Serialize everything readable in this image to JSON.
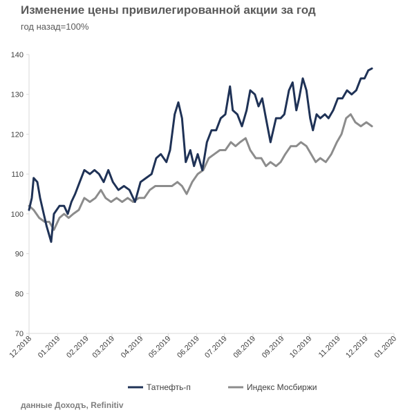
{
  "title": "Изменение цены привилегированной  акции за год",
  "subtitle": "год назад=100%",
  "source": "данные Доходъ, Refinitiv",
  "colors": {
    "series1": "#1f3256",
    "series2": "#8c8c8c",
    "axis": "#d9d9d9"
  },
  "chart_data": {
    "type": "line",
    "title": "Изменение цены привилегированной  акции за год",
    "subtitle": "год назад=100%",
    "ylim": [
      70,
      140
    ],
    "yticks": [
      70,
      80,
      90,
      100,
      110,
      120,
      130,
      140
    ],
    "xlim": [
      "2018-12-01",
      "2020-01-01"
    ],
    "xticks": [
      "12.2018",
      "01.2019",
      "02.2019",
      "03.2019",
      "04.2019",
      "05.2019",
      "06.2019",
      "07.2019",
      "08.2019",
      "09.2019",
      "10.2019",
      "11.2019",
      "12.2019",
      "01.2020"
    ],
    "grid": "none",
    "legend_position": "bottom",
    "series": [
      {
        "name": "Татнефть-п",
        "color": "#1f3256",
        "points": [
          [
            "2018-12-01",
            101
          ],
          [
            "2018-12-04",
            104
          ],
          [
            "2018-12-06",
            109
          ],
          [
            "2018-12-10",
            108
          ],
          [
            "2018-12-13",
            104
          ],
          [
            "2018-12-17",
            100
          ],
          [
            "2018-12-20",
            97
          ],
          [
            "2018-12-25",
            93
          ],
          [
            "2018-12-28",
            100
          ],
          [
            "2019-01-03",
            102
          ],
          [
            "2019-01-08",
            102
          ],
          [
            "2019-01-12",
            100
          ],
          [
            "2019-01-16",
            103
          ],
          [
            "2019-01-20",
            105
          ],
          [
            "2019-01-25",
            108
          ],
          [
            "2019-01-30",
            111
          ],
          [
            "2019-02-05",
            110
          ],
          [
            "2019-02-10",
            111
          ],
          [
            "2019-02-15",
            110
          ],
          [
            "2019-02-20",
            108
          ],
          [
            "2019-02-25",
            111
          ],
          [
            "2019-03-02",
            108
          ],
          [
            "2019-03-08",
            106
          ],
          [
            "2019-03-14",
            107
          ],
          [
            "2019-03-20",
            106
          ],
          [
            "2019-03-26",
            103
          ],
          [
            "2019-04-01",
            108
          ],
          [
            "2019-04-07",
            109
          ],
          [
            "2019-04-13",
            110
          ],
          [
            "2019-04-18",
            114
          ],
          [
            "2019-04-23",
            115
          ],
          [
            "2019-04-29",
            113
          ],
          [
            "2019-05-03",
            116
          ],
          [
            "2019-05-08",
            125
          ],
          [
            "2019-05-12",
            128
          ],
          [
            "2019-05-16",
            124
          ],
          [
            "2019-05-20",
            113
          ],
          [
            "2019-05-25",
            116
          ],
          [
            "2019-05-29",
            112
          ],
          [
            "2019-06-02",
            115
          ],
          [
            "2019-06-07",
            111
          ],
          [
            "2019-06-12",
            118
          ],
          [
            "2019-06-17",
            121
          ],
          [
            "2019-06-22",
            121
          ],
          [
            "2019-06-27",
            124
          ],
          [
            "2019-07-02",
            125
          ],
          [
            "2019-07-07",
            132
          ],
          [
            "2019-07-10",
            126
          ],
          [
            "2019-07-15",
            125
          ],
          [
            "2019-07-20",
            122
          ],
          [
            "2019-07-25",
            126
          ],
          [
            "2019-07-29",
            131
          ],
          [
            "2019-08-03",
            130
          ],
          [
            "2019-08-07",
            127
          ],
          [
            "2019-08-11",
            129
          ],
          [
            "2019-08-15",
            124
          ],
          [
            "2019-08-20",
            118
          ],
          [
            "2019-08-26",
            124
          ],
          [
            "2019-08-31",
            124
          ],
          [
            "2019-09-04",
            125
          ],
          [
            "2019-09-09",
            131
          ],
          [
            "2019-09-13",
            133
          ],
          [
            "2019-09-17",
            126
          ],
          [
            "2019-09-20",
            129
          ],
          [
            "2019-09-24",
            134
          ],
          [
            "2019-09-28",
            131
          ],
          [
            "2019-10-02",
            124
          ],
          [
            "2019-10-05",
            121
          ],
          [
            "2019-10-09",
            125
          ],
          [
            "2019-10-13",
            124
          ],
          [
            "2019-10-18",
            125
          ],
          [
            "2019-10-22",
            124
          ],
          [
            "2019-10-27",
            126
          ],
          [
            "2019-11-01",
            129
          ],
          [
            "2019-11-06",
            129
          ],
          [
            "2019-11-11",
            131
          ],
          [
            "2019-11-16",
            130
          ],
          [
            "2019-11-21",
            131
          ],
          [
            "2019-11-26",
            134
          ],
          [
            "2019-11-30",
            134
          ],
          [
            "2019-12-04",
            136
          ],
          [
            "2019-12-08",
            136.5
          ]
        ]
      },
      {
        "name": "Индекс Мосбиржи",
        "color": "#8c8c8c",
        "points": [
          [
            "2018-12-01",
            102
          ],
          [
            "2018-12-06",
            101
          ],
          [
            "2018-12-12",
            99
          ],
          [
            "2018-12-18",
            98
          ],
          [
            "2018-12-23",
            98
          ],
          [
            "2018-12-28",
            96
          ],
          [
            "2019-01-03",
            99
          ],
          [
            "2019-01-08",
            100
          ],
          [
            "2019-01-13",
            99
          ],
          [
            "2019-01-18",
            100
          ],
          [
            "2019-01-24",
            101
          ],
          [
            "2019-01-30",
            104
          ],
          [
            "2019-02-05",
            103
          ],
          [
            "2019-02-11",
            104
          ],
          [
            "2019-02-17",
            106
          ],
          [
            "2019-02-22",
            104
          ],
          [
            "2019-02-28",
            103
          ],
          [
            "2019-03-06",
            104
          ],
          [
            "2019-03-12",
            103
          ],
          [
            "2019-03-18",
            104
          ],
          [
            "2019-03-24",
            103
          ],
          [
            "2019-03-30",
            104
          ],
          [
            "2019-04-05",
            104
          ],
          [
            "2019-04-11",
            106
          ],
          [
            "2019-04-17",
            107
          ],
          [
            "2019-04-23",
            107
          ],
          [
            "2019-04-29",
            107
          ],
          [
            "2019-05-05",
            107
          ],
          [
            "2019-05-11",
            108
          ],
          [
            "2019-05-16",
            107
          ],
          [
            "2019-05-21",
            105
          ],
          [
            "2019-05-27",
            108
          ],
          [
            "2019-06-02",
            110
          ],
          [
            "2019-06-08",
            111
          ],
          [
            "2019-06-14",
            114
          ],
          [
            "2019-06-20",
            115
          ],
          [
            "2019-06-26",
            116
          ],
          [
            "2019-07-02",
            116
          ],
          [
            "2019-07-08",
            118
          ],
          [
            "2019-07-13",
            117
          ],
          [
            "2019-07-18",
            118
          ],
          [
            "2019-07-24",
            119
          ],
          [
            "2019-07-29",
            116
          ],
          [
            "2019-08-04",
            114
          ],
          [
            "2019-08-10",
            114
          ],
          [
            "2019-08-15",
            112
          ],
          [
            "2019-08-20",
            113
          ],
          [
            "2019-08-26",
            112
          ],
          [
            "2019-08-31",
            113
          ],
          [
            "2019-09-05",
            115
          ],
          [
            "2019-09-11",
            117
          ],
          [
            "2019-09-17",
            117
          ],
          [
            "2019-09-22",
            118
          ],
          [
            "2019-09-28",
            117
          ],
          [
            "2019-10-03",
            115
          ],
          [
            "2019-10-08",
            113
          ],
          [
            "2019-10-13",
            114
          ],
          [
            "2019-10-19",
            113
          ],
          [
            "2019-10-25",
            115
          ],
          [
            "2019-10-31",
            118
          ],
          [
            "2019-11-05",
            120
          ],
          [
            "2019-11-10",
            124
          ],
          [
            "2019-11-15",
            125
          ],
          [
            "2019-11-20",
            123
          ],
          [
            "2019-11-26",
            122
          ],
          [
            "2019-12-02",
            123
          ],
          [
            "2019-12-08",
            122
          ]
        ]
      }
    ]
  }
}
